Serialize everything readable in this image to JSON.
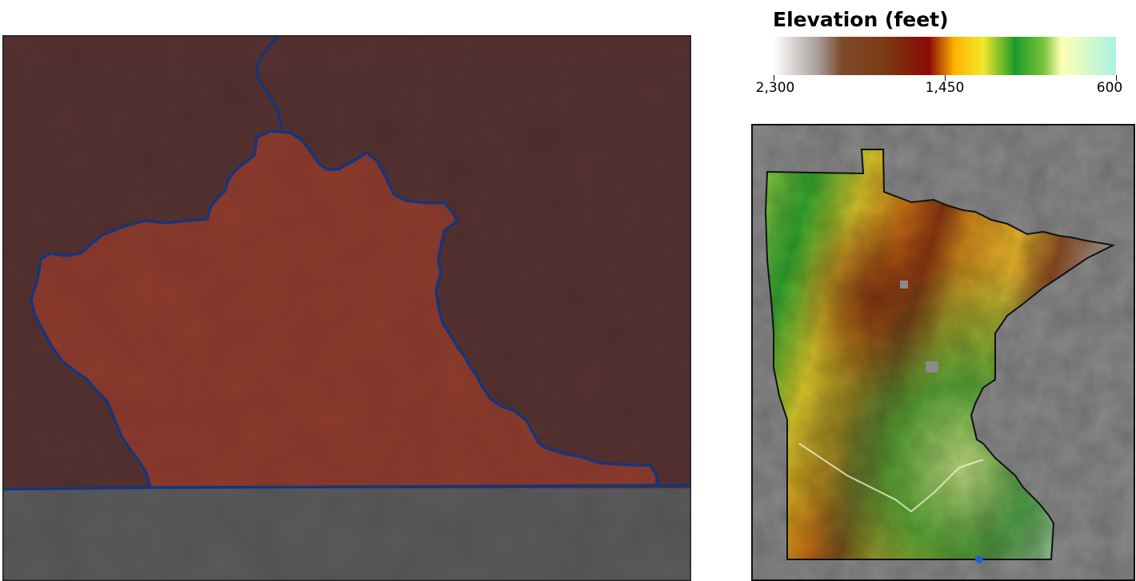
{
  "legend": {
    "title": "Elevation (feet)",
    "ticks": [
      {
        "label": "2,300",
        "value": 2300
      },
      {
        "label": "1,450",
        "value": 1450
      },
      {
        "label": "600",
        "value": 600
      }
    ],
    "range": [
      2300,
      600
    ],
    "color_stops": [
      {
        "value": 2300,
        "color": "#ffffff"
      },
      {
        "value": 2080,
        "color": "#a79e9a"
      },
      {
        "value": 1960,
        "color": "#7d4a2a"
      },
      {
        "value": 1750,
        "color": "#7a3a12"
      },
      {
        "value": 1530,
        "color": "#8b0a05"
      },
      {
        "value": 1400,
        "color": "#ffb400"
      },
      {
        "value": 1260,
        "color": "#f2e82a"
      },
      {
        "value": 1100,
        "color": "#1c9a2c"
      },
      {
        "value": 960,
        "color": "#79c33b"
      },
      {
        "value": 870,
        "color": "#ffffb3"
      },
      {
        "value": 600,
        "color": "#a9f2e2"
      }
    ]
  },
  "main_map": {
    "highlight_color": "#8c3b2d",
    "outer_color": "#553231",
    "boundary_color": "#16357a",
    "lower_region_color": "#5a5a5c"
  },
  "inset_map": {
    "marker_color": "#1f5fd4"
  }
}
